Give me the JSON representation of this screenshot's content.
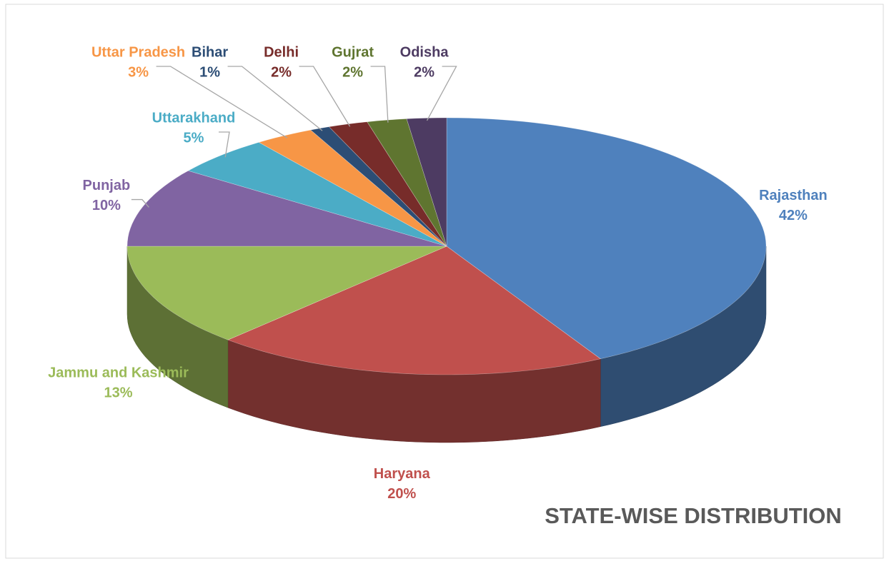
{
  "chart_data": {
    "type": "pie",
    "title": "STATE-WISE DISTRIBUTION",
    "categories": [
      "Rajasthan",
      "Haryana",
      "Jammu and Kashmir",
      "Punjab",
      "Uttarakhand",
      "Uttar Pradesh",
      "Bihar",
      "Delhi",
      "Gujrat",
      "Odisha"
    ],
    "values": [
      42,
      20,
      13,
      10,
      5,
      3,
      1,
      2,
      2,
      2
    ],
    "value_labels": [
      "42%",
      "20%",
      "13%",
      "10%",
      "5%",
      "3%",
      "1%",
      "2%",
      "2%",
      "2%"
    ],
    "colors": [
      "#4f81bd",
      "#c0504d",
      "#9bbb59",
      "#8064a2",
      "#4bacc6",
      "#f79646",
      "#2c4d75",
      "#772c2a",
      "#5f7530",
      "#4d3b62"
    ]
  }
}
